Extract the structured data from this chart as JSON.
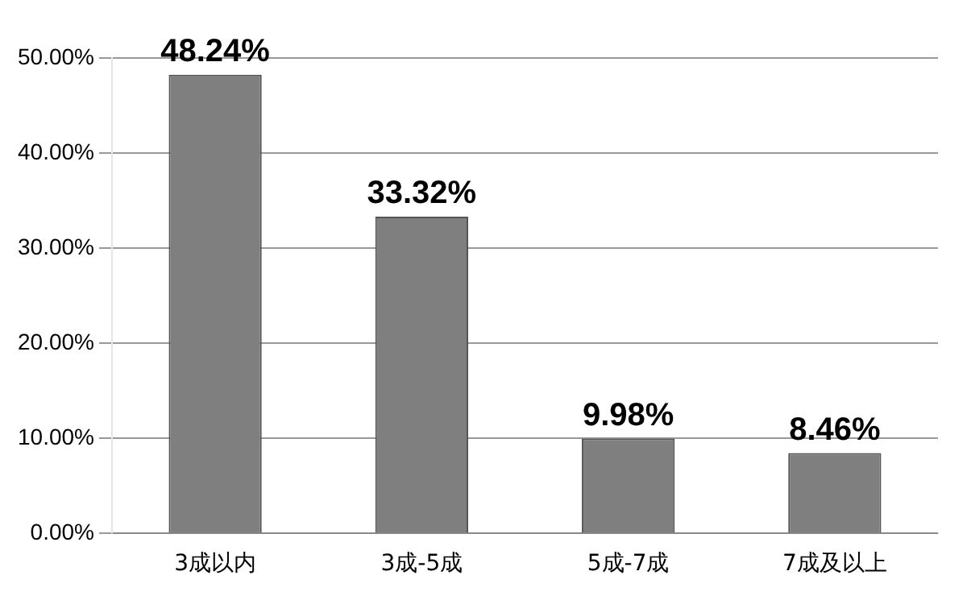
{
  "chart_data": {
    "type": "bar",
    "categories": [
      "3成以内",
      "3成-5成",
      "5成-7成",
      "7成及以上"
    ],
    "values": [
      48.24,
      33.32,
      9.98,
      8.46
    ],
    "value_labels": [
      "48.24%",
      "33.32%",
      "9.98%",
      "8.46%"
    ],
    "color": "#7f7f7f",
    "ylim": [
      0,
      50
    ],
    "yticks": [
      {
        "value": 0,
        "label": "0.00%"
      },
      {
        "value": 10,
        "label": "10.00%"
      },
      {
        "value": 20,
        "label": "20.00%"
      },
      {
        "value": 30,
        "label": "30.00%"
      },
      {
        "value": 40,
        "label": "40.00%"
      },
      {
        "value": 50,
        "label": "50.00%"
      }
    ],
    "grid": "y"
  }
}
